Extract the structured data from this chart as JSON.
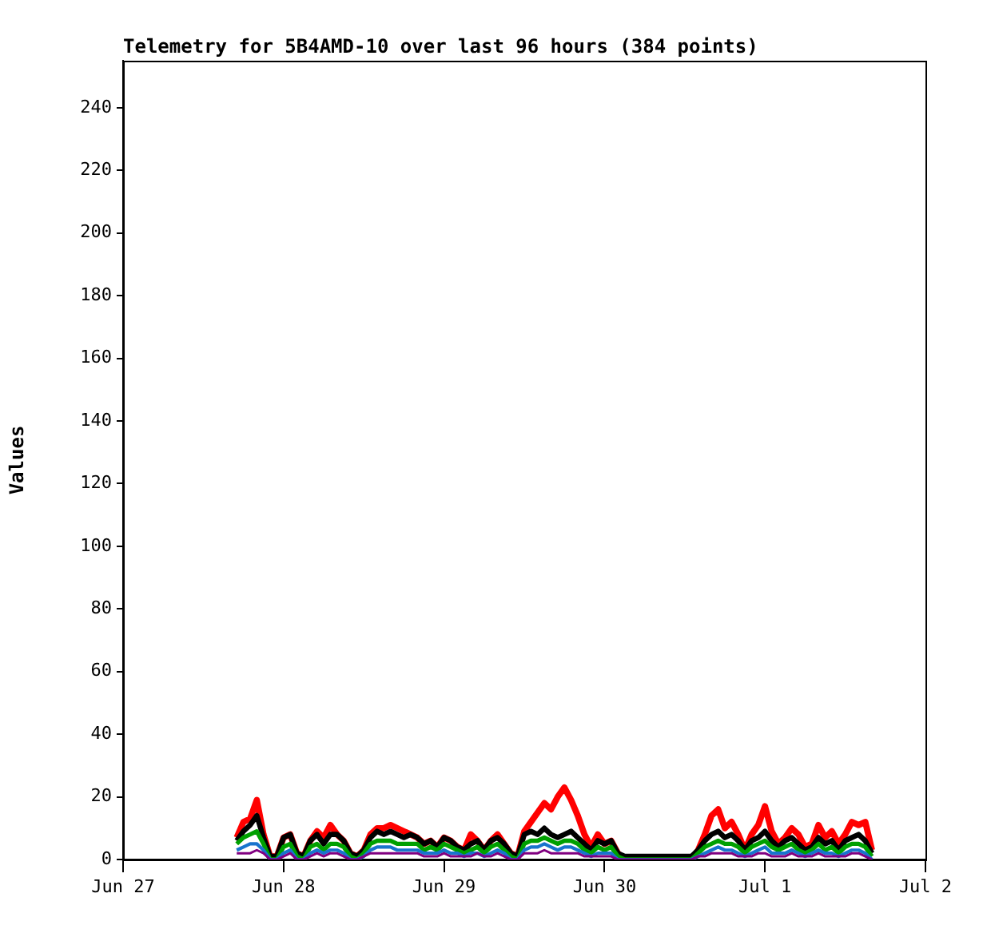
{
  "chart_data": {
    "type": "line",
    "title": "Telemetry for 5B4AMD-10 over last 96 hours (384 points)",
    "ylabel": "Values",
    "x": [
      "--06-27T17:00",
      "--06-27T18:00",
      "--06-27T19:00",
      "--06-27T20:00",
      "--06-27T21:00",
      "--06-27T22:00",
      "--06-27T23:00",
      "--06-28T00:00",
      "--06-28T01:00",
      "--06-28T02:00",
      "--06-28T03:00",
      "--06-28T04:00",
      "--06-28T05:00",
      "--06-28T06:00",
      "--06-28T07:00",
      "--06-28T08:00",
      "--06-28T09:00",
      "--06-28T10:00",
      "--06-28T11:00",
      "--06-28T12:00",
      "--06-28T13:00",
      "--06-28T14:00",
      "--06-28T15:00",
      "--06-28T16:00",
      "--06-28T17:00",
      "--06-28T18:00",
      "--06-28T19:00",
      "--06-28T20:00",
      "--06-28T21:00",
      "--06-28T22:00",
      "--06-28T23:00",
      "--06-29T00:00",
      "--06-29T01:00",
      "--06-29T02:00",
      "--06-29T03:00",
      "--06-29T04:00",
      "--06-29T05:00",
      "--06-29T06:00",
      "--06-29T07:00",
      "--06-29T08:00",
      "--06-29T09:00",
      "--06-29T10:00",
      "--06-29T11:00",
      "--06-29T12:00",
      "--06-29T13:00",
      "--06-29T14:00",
      "--06-29T15:00",
      "--06-29T16:00",
      "--06-29T17:00",
      "--06-29T18:00",
      "--06-29T19:00",
      "--06-29T20:00",
      "--06-29T21:00",
      "--06-29T22:00",
      "--06-29T23:00",
      "--06-30T00:00",
      "--06-30T01:00",
      "--06-30T02:00",
      "--06-30T03:00",
      "--06-30T04:00",
      "--06-30T05:00",
      "--06-30T06:00",
      "--06-30T07:00",
      "--06-30T08:00",
      "--06-30T09:00",
      "--06-30T10:00",
      "--06-30T11:00",
      "--06-30T12:00",
      "--06-30T13:00",
      "--06-30T14:00",
      "--06-30T15:00",
      "--06-30T16:00",
      "--06-30T17:00",
      "--06-30T18:00",
      "--06-30T19:00",
      "--06-30T20:00",
      "--06-30T21:00",
      "--06-30T22:00",
      "--06-30T23:00",
      "--07-01T00:00",
      "--07-01T01:00",
      "--07-01T02:00",
      "--07-01T03:00",
      "--07-01T04:00",
      "--07-01T05:00",
      "--07-01T06:00",
      "--07-01T07:00",
      "--07-01T08:00",
      "--07-01T09:00",
      "--07-01T10:00",
      "--07-01T11:00",
      "--07-01T12:00",
      "--07-01T13:00",
      "--07-01T14:00",
      "--07-01T15:00",
      "--07-01T16:00"
    ],
    "series": [
      {
        "color": "#ff0000",
        "values": [
          7,
          12,
          13,
          19,
          8,
          1,
          1,
          7,
          8,
          2,
          1,
          6,
          9,
          7,
          11,
          8,
          6,
          2,
          1,
          3,
          8,
          10,
          10,
          11,
          10,
          9,
          8,
          7,
          5,
          6,
          4,
          7,
          6,
          4,
          3,
          8,
          6,
          3,
          6,
          8,
          5,
          2,
          1,
          9,
          12,
          15,
          18,
          16,
          20,
          23,
          19,
          14,
          8,
          4,
          8,
          5,
          6,
          2,
          0,
          0,
          0,
          0,
          0,
          0,
          0,
          0,
          0,
          0,
          0,
          3,
          8,
          14,
          16,
          10,
          12,
          8,
          3,
          8,
          11,
          17,
          9,
          5,
          7,
          10,
          8,
          4,
          5,
          11,
          7,
          9,
          5,
          8,
          12,
          11,
          12,
          3
        ]
      },
      {
        "color": "#000000",
        "values": [
          6,
          9,
          11,
          14,
          7,
          1,
          1,
          7,
          8,
          2,
          1,
          6,
          8,
          5,
          8,
          8,
          6,
          2,
          1,
          3,
          7,
          9,
          8,
          9,
          8,
          7,
          8,
          7,
          5,
          6,
          4,
          7,
          6,
          4,
          3,
          5,
          6,
          3,
          6,
          7,
          5,
          2,
          1,
          8,
          9,
          8,
          10,
          8,
          7,
          8,
          9,
          7,
          5,
          3,
          6,
          5,
          6,
          2,
          1,
          1,
          1,
          1,
          1,
          1,
          1,
          1,
          1,
          1,
          1,
          3,
          6,
          8,
          9,
          7,
          8,
          6,
          3,
          6,
          7,
          9,
          6,
          4,
          6,
          7,
          5,
          3,
          4,
          7,
          5,
          6,
          3,
          6,
          7,
          8,
          6,
          2
        ]
      },
      {
        "color": "#00a000",
        "values": [
          5,
          7,
          8,
          9,
          5,
          0,
          0,
          4,
          5,
          1,
          0,
          4,
          5,
          3,
          5,
          5,
          4,
          1,
          0,
          2,
          5,
          6,
          6,
          6,
          5,
          5,
          5,
          5,
          3,
          4,
          3,
          5,
          4,
          3,
          2,
          3,
          4,
          2,
          4,
          5,
          3,
          1,
          0,
          5,
          6,
          6,
          7,
          6,
          5,
          6,
          6,
          5,
          3,
          2,
          4,
          3,
          4,
          1,
          0,
          0,
          0,
          0,
          0,
          0,
          0,
          0,
          0,
          0,
          0,
          2,
          4,
          5,
          6,
          5,
          5,
          4,
          2,
          4,
          5,
          6,
          4,
          3,
          4,
          5,
          3,
          2,
          3,
          5,
          3,
          4,
          2,
          4,
          5,
          5,
          4,
          1
        ]
      },
      {
        "color": "#1874cd",
        "values": [
          3,
          4,
          5,
          5,
          3,
          0,
          0,
          2,
          3,
          0,
          0,
          2,
          3,
          2,
          3,
          3,
          2,
          0,
          0,
          1,
          3,
          4,
          4,
          4,
          3,
          3,
          3,
          3,
          2,
          2,
          2,
          3,
          2,
          2,
          1,
          2,
          2,
          1,
          2,
          3,
          2,
          0,
          0,
          3,
          4,
          4,
          5,
          4,
          3,
          4,
          4,
          3,
          2,
          1,
          2,
          2,
          2,
          0,
          0,
          0,
          0,
          0,
          0,
          0,
          0,
          0,
          0,
          0,
          0,
          1,
          2,
          3,
          4,
          3,
          3,
          2,
          1,
          2,
          3,
          4,
          2,
          2,
          2,
          3,
          2,
          1,
          2,
          3,
          2,
          2,
          1,
          2,
          3,
          3,
          2,
          0
        ]
      },
      {
        "color": "#800080",
        "values": [
          2,
          2,
          2,
          3,
          2,
          0,
          0,
          1,
          2,
          0,
          0,
          1,
          2,
          1,
          2,
          2,
          1,
          0,
          0,
          1,
          2,
          2,
          2,
          2,
          2,
          2,
          2,
          2,
          1,
          1,
          1,
          2,
          1,
          1,
          1,
          1,
          2,
          1,
          1,
          2,
          1,
          0,
          0,
          2,
          2,
          2,
          3,
          2,
          2,
          2,
          2,
          2,
          1,
          1,
          1,
          1,
          1,
          0,
          0,
          0,
          0,
          0,
          0,
          0,
          0,
          0,
          0,
          0,
          0,
          1,
          1,
          2,
          2,
          2,
          2,
          1,
          1,
          1,
          2,
          2,
          1,
          1,
          1,
          2,
          1,
          1,
          1,
          2,
          1,
          1,
          1,
          1,
          2,
          2,
          1,
          0
        ]
      }
    ],
    "xlim": [
      "--06-27",
      "--07-02"
    ],
    "xticks": [
      {
        "value": "--06-27",
        "label": "Jun 27"
      },
      {
        "value": "--06-28",
        "label": "Jun 28"
      },
      {
        "value": "--06-29",
        "label": "Jun 29"
      },
      {
        "value": "--06-30",
        "label": "Jun 30"
      },
      {
        "value": "--07-01",
        "label": "Jul 1"
      },
      {
        "value": "--07-02",
        "label": "Jul 2"
      }
    ],
    "ylim": [
      0,
      255
    ],
    "yticks": [
      0,
      20,
      40,
      60,
      80,
      100,
      120,
      140,
      160,
      180,
      200,
      220,
      240
    ],
    "grid": false,
    "legend": false
  }
}
